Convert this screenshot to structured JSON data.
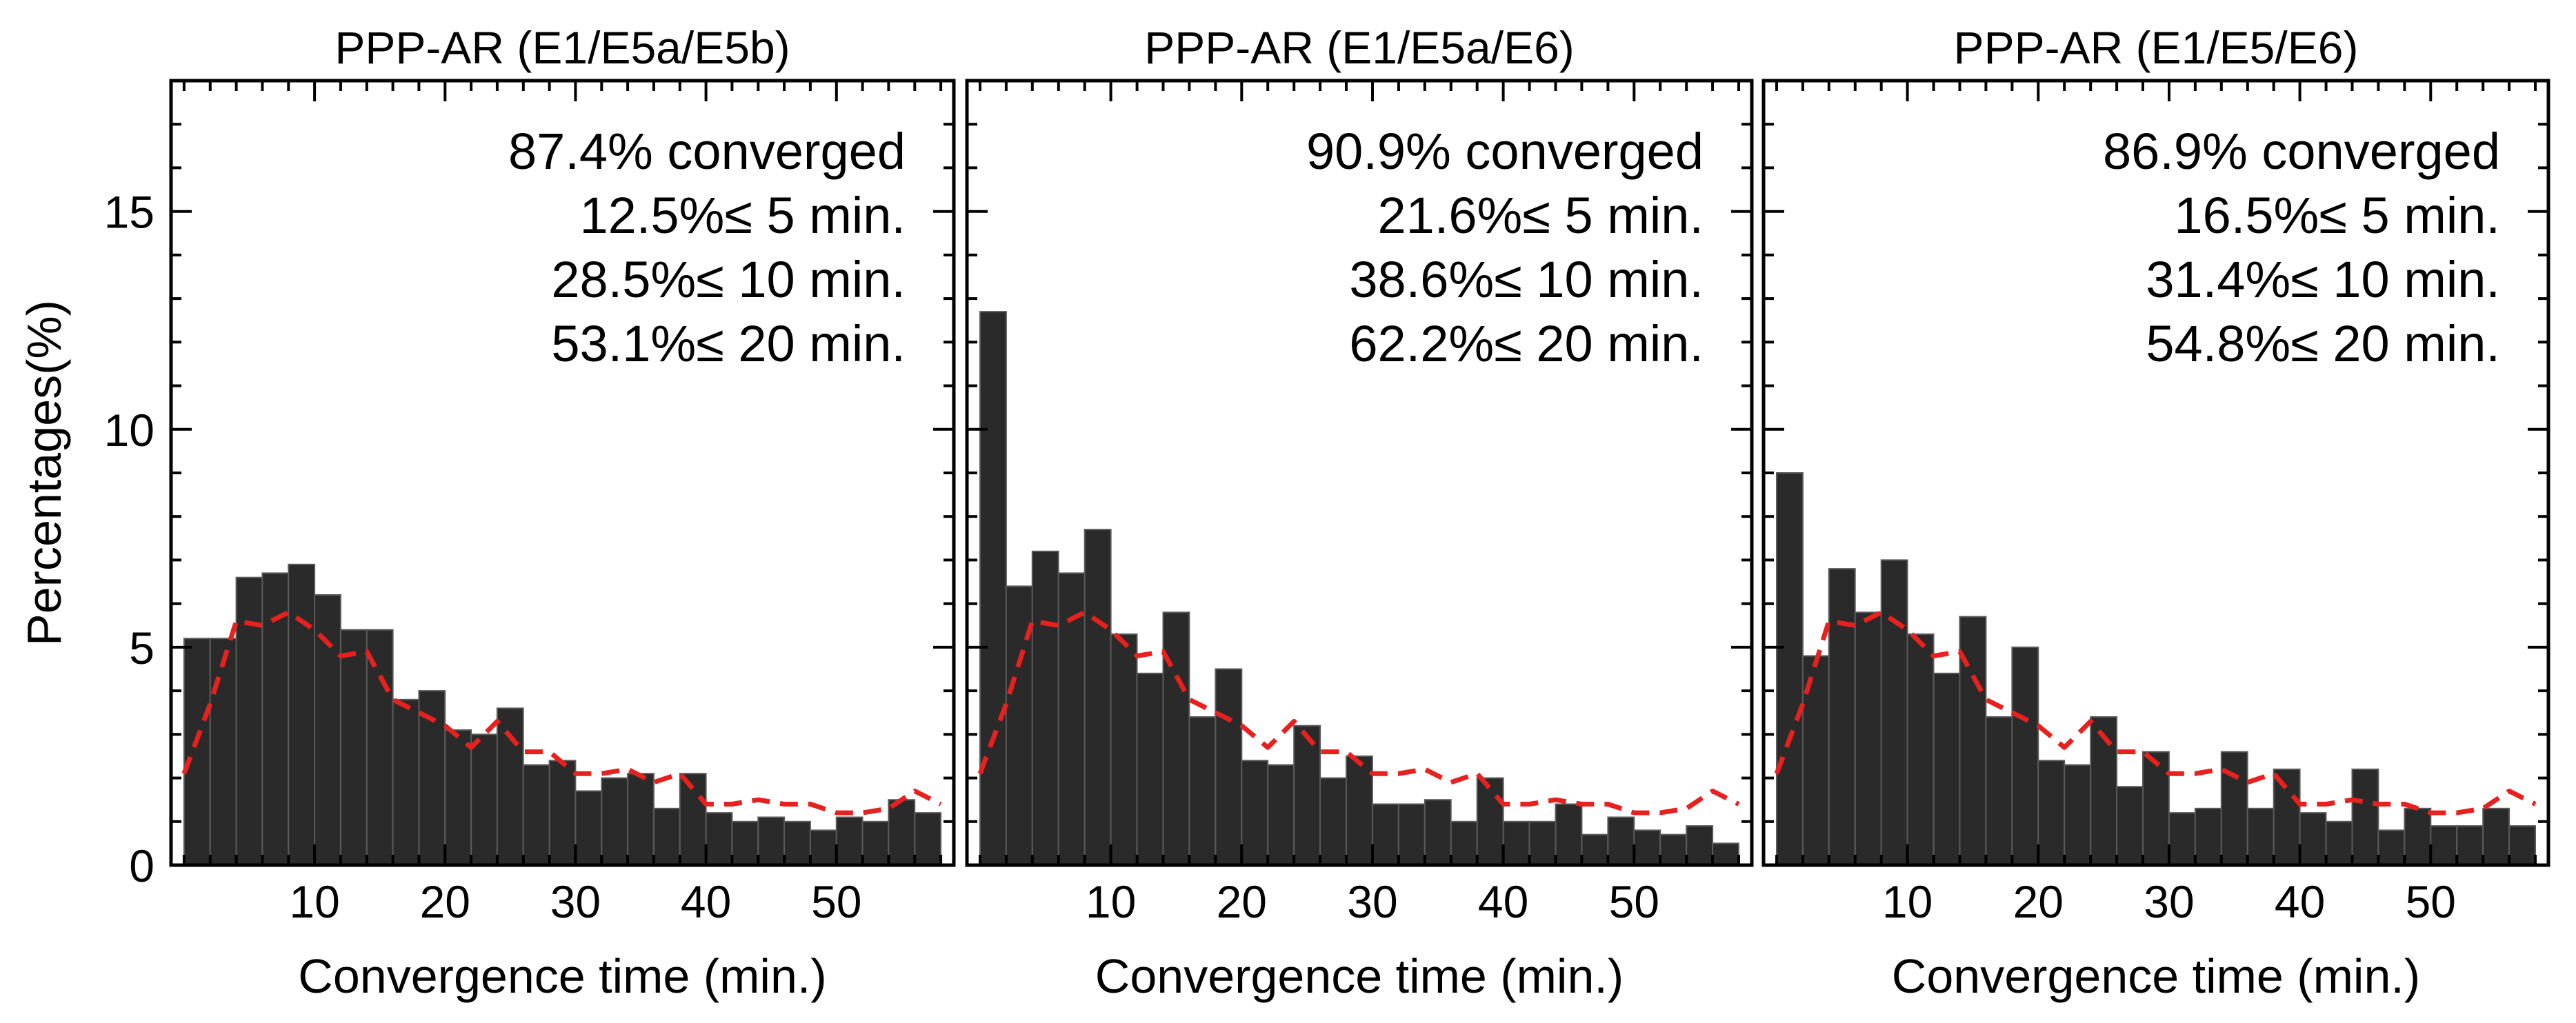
{
  "chart_data": [
    {
      "type": "bar",
      "title": "PPP-AR (E1/E5a/E5b)",
      "xlabel": "Convergence time (min.)",
      "ylabel": "Percentages(%)",
      "xlim": [
        -1,
        59
      ],
      "ylim": [
        0,
        18
      ],
      "xticks": [
        10,
        20,
        30,
        40,
        50
      ],
      "yticks": [
        0,
        5,
        10,
        15
      ],
      "bin_width": 2,
      "x": [
        0,
        2,
        4,
        6,
        8,
        10,
        12,
        14,
        16,
        18,
        20,
        22,
        24,
        26,
        28,
        30,
        32,
        34,
        36,
        38,
        40,
        42,
        44,
        46,
        48,
        50,
        52,
        54,
        56
      ],
      "values": [
        5.2,
        5.2,
        6.6,
        6.7,
        6.9,
        6.2,
        5.4,
        5.4,
        3.8,
        4.0,
        3.1,
        3.0,
        3.6,
        2.3,
        2.4,
        1.7,
        2.0,
        2.1,
        1.3,
        2.1,
        1.2,
        1.0,
        1.1,
        1.0,
        0.8,
        1.1,
        1.0,
        1.5,
        1.2
      ],
      "reference_line": {
        "style": "dashed",
        "color": "#e8211f",
        "x": [
          0,
          2,
          4,
          6,
          8,
          10,
          12,
          14,
          16,
          18,
          20,
          22,
          24,
          26,
          28,
          30,
          32,
          34,
          36,
          38,
          40,
          42,
          44,
          46,
          48,
          50,
          52,
          54,
          56,
          58
        ],
        "y": [
          2.1,
          3.7,
          5.6,
          5.5,
          5.8,
          5.4,
          4.8,
          4.9,
          3.8,
          3.5,
          3.2,
          2.7,
          3.3,
          2.6,
          2.6,
          2.1,
          2.1,
          2.2,
          1.9,
          2.1,
          1.4,
          1.4,
          1.5,
          1.4,
          1.4,
          1.2,
          1.2,
          1.3,
          1.7,
          1.4
        ]
      },
      "annotations": [
        "87.4% converged",
        "12.5%≤   5 min.",
        "28.5%≤  10 min.",
        "53.1%≤  20 min."
      ]
    },
    {
      "type": "bar",
      "title": "PPP-AR (E1/E5a/E6)",
      "xlabel": "Convergence time (min.)",
      "ylabel": "",
      "xlim": [
        -1,
        59
      ],
      "ylim": [
        0,
        18
      ],
      "xticks": [
        10,
        20,
        30,
        40,
        50
      ],
      "yticks": [
        0,
        5,
        10,
        15
      ],
      "bin_width": 2,
      "x": [
        0,
        2,
        4,
        6,
        8,
        10,
        12,
        14,
        16,
        18,
        20,
        22,
        24,
        26,
        28,
        30,
        32,
        34,
        36,
        38,
        40,
        42,
        44,
        46,
        48,
        50,
        52,
        54,
        56
      ],
      "values": [
        12.7,
        6.4,
        7.2,
        6.7,
        7.7,
        5.3,
        4.4,
        5.8,
        3.4,
        4.5,
        2.4,
        2.3,
        3.2,
        2.0,
        2.5,
        1.4,
        1.4,
        1.5,
        1.0,
        2.0,
        1.0,
        1.0,
        1.4,
        0.7,
        1.1,
        0.8,
        0.7,
        0.9,
        0.5
      ],
      "reference_line": {
        "style": "dashed",
        "color": "#e8211f",
        "x": [
          0,
          2,
          4,
          6,
          8,
          10,
          12,
          14,
          16,
          18,
          20,
          22,
          24,
          26,
          28,
          30,
          32,
          34,
          36,
          38,
          40,
          42,
          44,
          46,
          48,
          50,
          52,
          54,
          56,
          58
        ],
        "y": [
          2.1,
          3.7,
          5.6,
          5.5,
          5.8,
          5.4,
          4.8,
          4.9,
          3.8,
          3.5,
          3.2,
          2.7,
          3.3,
          2.6,
          2.6,
          2.1,
          2.1,
          2.2,
          1.9,
          2.1,
          1.4,
          1.4,
          1.5,
          1.4,
          1.4,
          1.2,
          1.2,
          1.3,
          1.7,
          1.4
        ]
      },
      "annotations": [
        "90.9% converged",
        "21.6%≤   5 min.",
        "38.6%≤  10 min.",
        "62.2%≤  20 min."
      ]
    },
    {
      "type": "bar",
      "title": "PPP-AR (E1/E5/E6)",
      "xlabel": "Convergence time (min.)",
      "ylabel": "",
      "xlim": [
        -1,
        59
      ],
      "ylim": [
        0,
        18
      ],
      "xticks": [
        10,
        20,
        30,
        40,
        50
      ],
      "yticks": [
        0,
        5,
        10,
        15
      ],
      "bin_width": 2,
      "x": [
        0,
        2,
        4,
        6,
        8,
        10,
        12,
        14,
        16,
        18,
        20,
        22,
        24,
        26,
        28,
        30,
        32,
        34,
        36,
        38,
        40,
        42,
        44,
        46,
        48,
        50,
        52,
        54,
        56
      ],
      "values": [
        9.0,
        4.8,
        6.8,
        5.8,
        7.0,
        5.3,
        4.4,
        5.7,
        3.4,
        5.0,
        2.4,
        2.3,
        3.4,
        1.8,
        2.6,
        1.2,
        1.3,
        2.6,
        1.3,
        2.2,
        1.2,
        1.0,
        2.2,
        0.8,
        1.3,
        0.9,
        0.9,
        1.3,
        0.9
      ],
      "reference_line": {
        "style": "dashed",
        "color": "#e8211f",
        "x": [
          0,
          2,
          4,
          6,
          8,
          10,
          12,
          14,
          16,
          18,
          20,
          22,
          24,
          26,
          28,
          30,
          32,
          34,
          36,
          38,
          40,
          42,
          44,
          46,
          48,
          50,
          52,
          54,
          56,
          58
        ],
        "y": [
          2.1,
          3.7,
          5.6,
          5.5,
          5.8,
          5.4,
          4.8,
          4.9,
          3.8,
          3.5,
          3.2,
          2.7,
          3.3,
          2.6,
          2.6,
          2.1,
          2.1,
          2.2,
          1.9,
          2.1,
          1.4,
          1.4,
          1.5,
          1.4,
          1.4,
          1.2,
          1.2,
          1.3,
          1.7,
          1.4
        ]
      },
      "annotations": [
        "86.9% converged",
        "16.5%≤   5 min.",
        "31.4%≤  10 min.",
        "54.8%≤  20 min."
      ]
    }
  ],
  "colors": {
    "bar_fill": "#2a2a2a",
    "bar_edge": "#5a5a5a",
    "frame": "#000000",
    "reference_line": "#e8211f"
  }
}
